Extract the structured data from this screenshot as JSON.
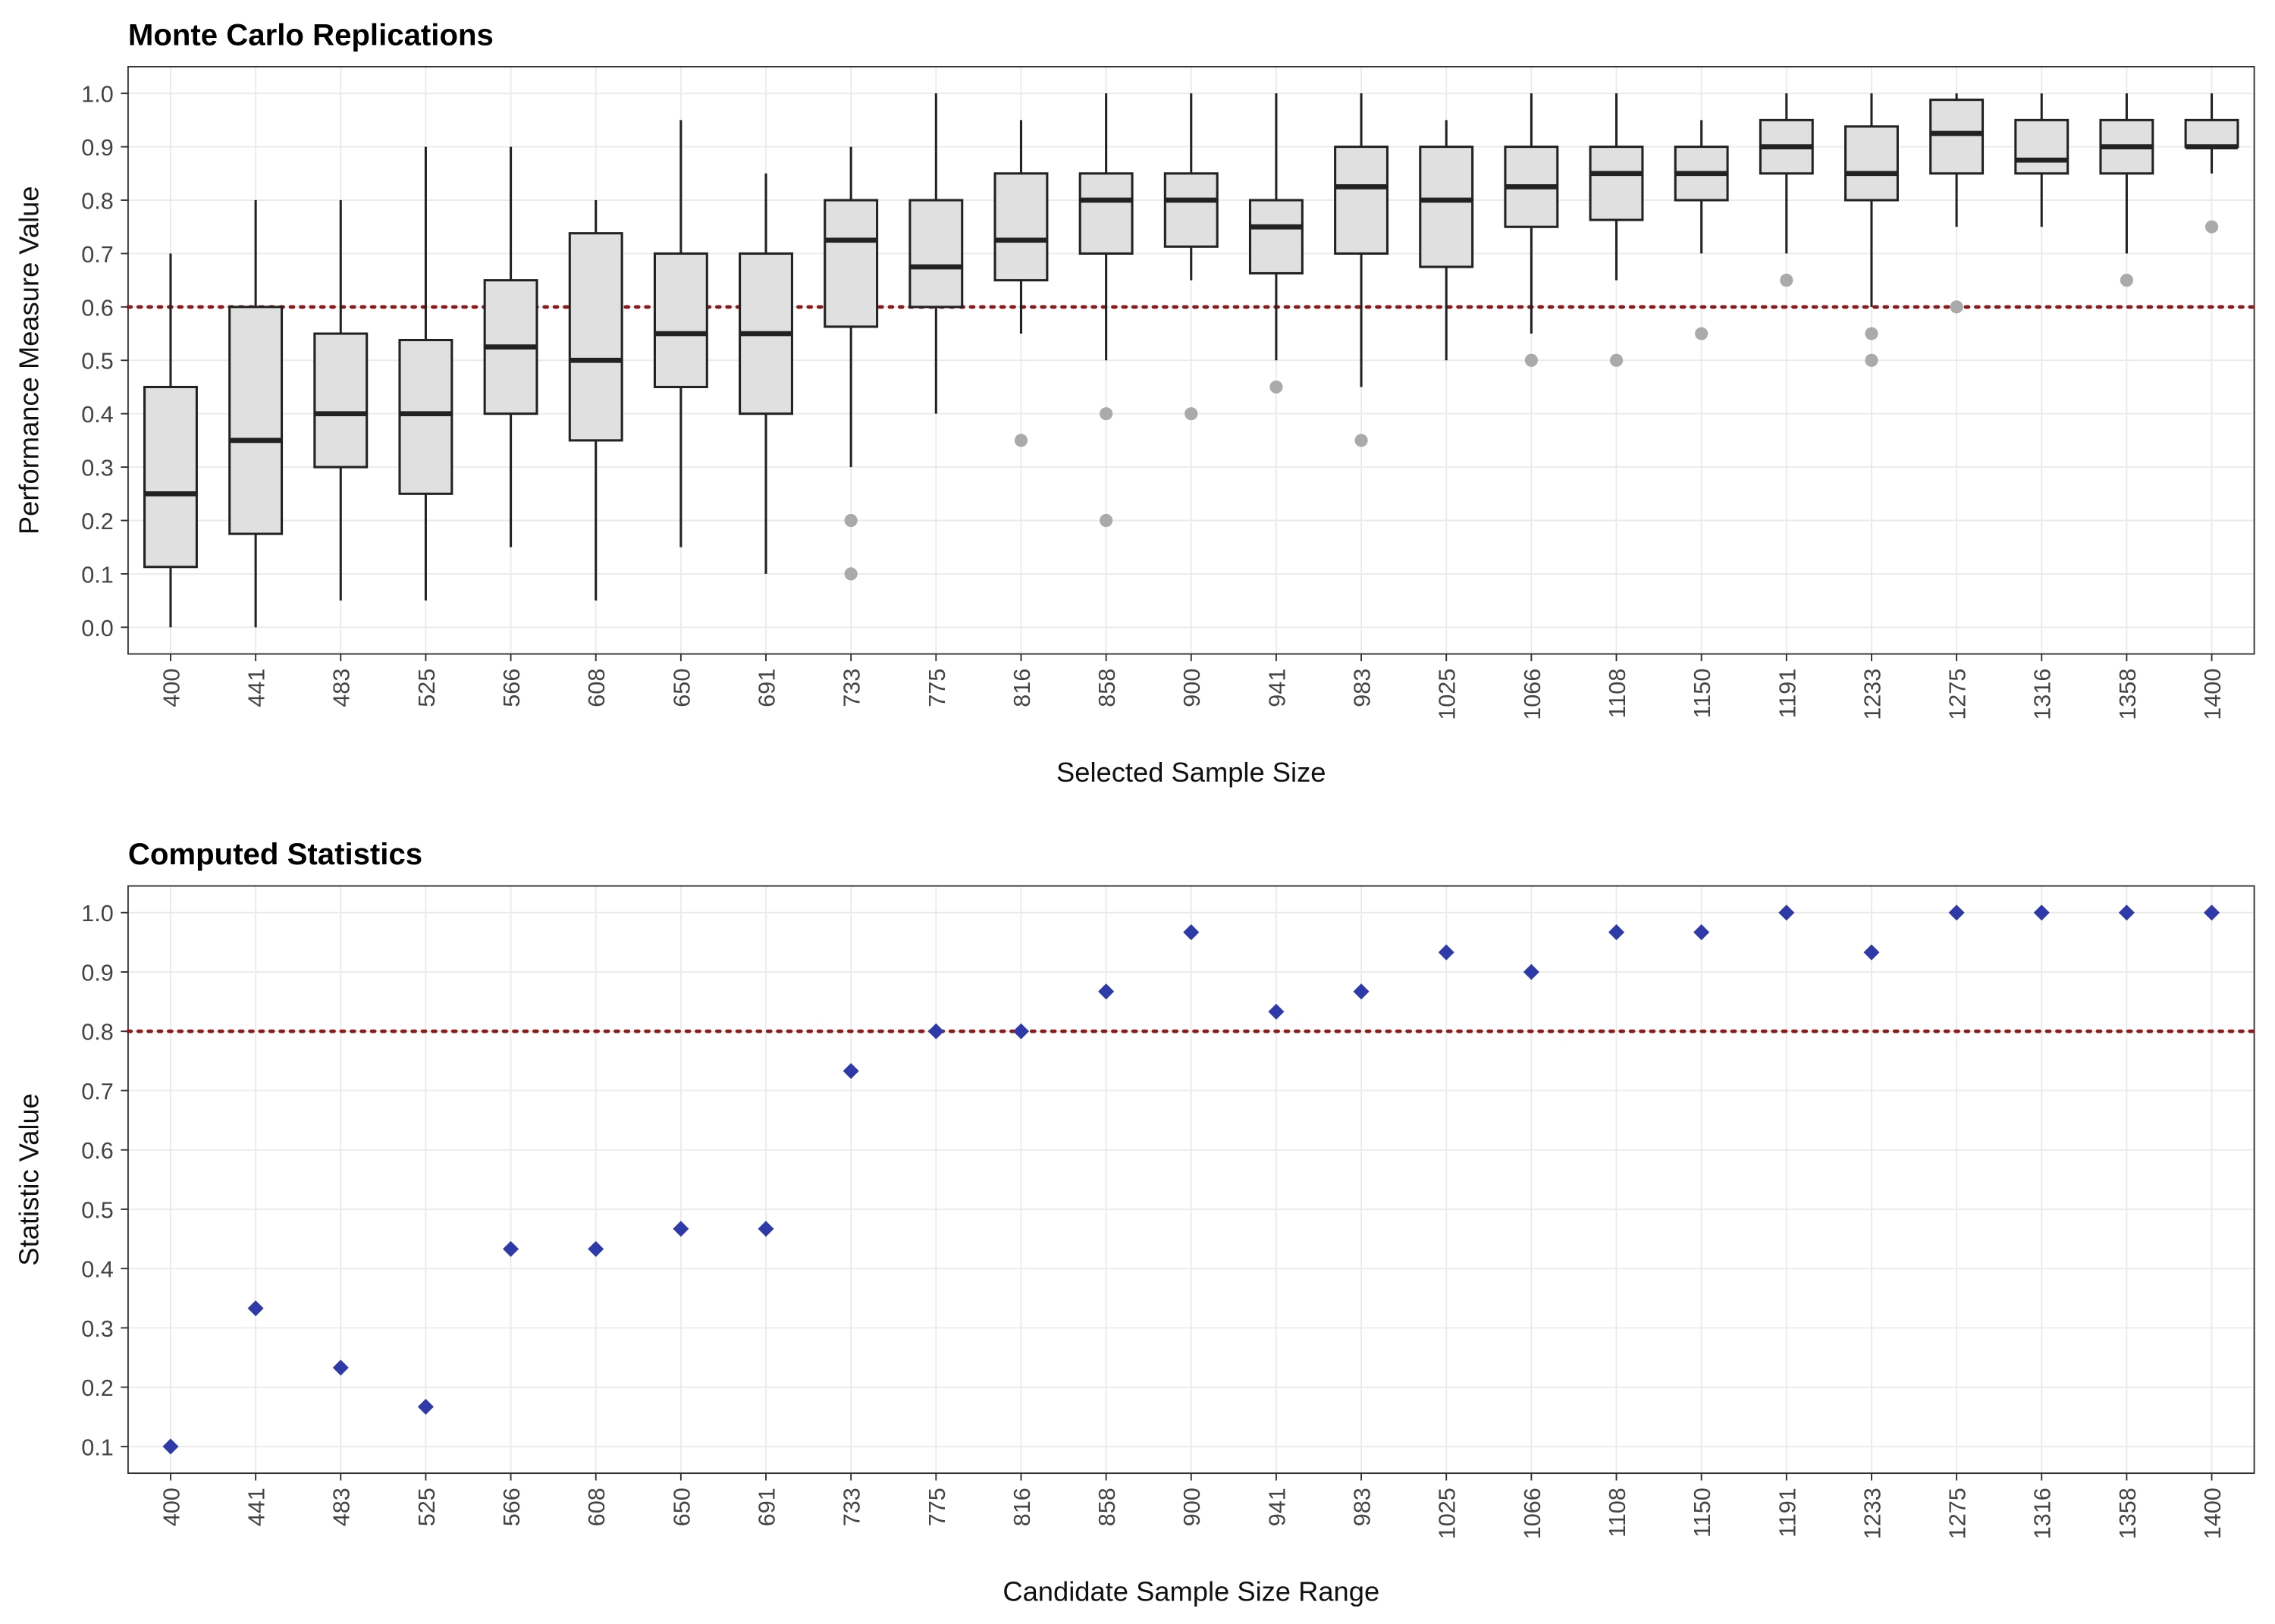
{
  "chart_data": [
    {
      "type": "box",
      "title": "Monte Carlo Replications",
      "x_label": "Selected Sample Size",
      "y_label": "Performance Measure Value",
      "categories": [
        "400",
        "441",
        "483",
        "525",
        "566",
        "608",
        "650",
        "691",
        "733",
        "775",
        "816",
        "858",
        "900",
        "941",
        "983",
        "1025",
        "1066",
        "1108",
        "1150",
        "1191",
        "1233",
        "1275",
        "1316",
        "1358",
        "1400"
      ],
      "boxes": [
        {
          "whisker_low": 0.0,
          "q1": 0.113,
          "median": 0.25,
          "q3": 0.45,
          "whisker_high": 0.7,
          "outliers": []
        },
        {
          "whisker_low": 0.0,
          "q1": 0.175,
          "median": 0.35,
          "q3": 0.6,
          "whisker_high": 0.8,
          "outliers": []
        },
        {
          "whisker_low": 0.05,
          "q1": 0.3,
          "median": 0.4,
          "q3": 0.55,
          "whisker_high": 0.8,
          "outliers": []
        },
        {
          "whisker_low": 0.05,
          "q1": 0.25,
          "median": 0.4,
          "q3": 0.538,
          "whisker_high": 0.9,
          "outliers": []
        },
        {
          "whisker_low": 0.15,
          "q1": 0.4,
          "median": 0.525,
          "q3": 0.65,
          "whisker_high": 0.9,
          "outliers": []
        },
        {
          "whisker_low": 0.05,
          "q1": 0.35,
          "median": 0.5,
          "q3": 0.738,
          "whisker_high": 0.8,
          "outliers": []
        },
        {
          "whisker_low": 0.15,
          "q1": 0.45,
          "median": 0.55,
          "q3": 0.7,
          "whisker_high": 0.95,
          "outliers": []
        },
        {
          "whisker_low": 0.1,
          "q1": 0.4,
          "median": 0.55,
          "q3": 0.7,
          "whisker_high": 0.85,
          "outliers": []
        },
        {
          "whisker_low": 0.3,
          "q1": 0.563,
          "median": 0.725,
          "q3": 0.8,
          "whisker_high": 0.9,
          "outliers": [
            0.2,
            0.1
          ]
        },
        {
          "whisker_low": 0.4,
          "q1": 0.6,
          "median": 0.675,
          "q3": 0.8,
          "whisker_high": 1.0,
          "outliers": []
        },
        {
          "whisker_low": 0.55,
          "q1": 0.65,
          "median": 0.725,
          "q3": 0.85,
          "whisker_high": 0.95,
          "outliers": [
            0.35
          ]
        },
        {
          "whisker_low": 0.5,
          "q1": 0.7,
          "median": 0.8,
          "q3": 0.85,
          "whisker_high": 1.0,
          "outliers": [
            0.4,
            0.2
          ]
        },
        {
          "whisker_low": 0.65,
          "q1": 0.713,
          "median": 0.8,
          "q3": 0.85,
          "whisker_high": 1.0,
          "outliers": [
            0.4
          ]
        },
        {
          "whisker_low": 0.5,
          "q1": 0.663,
          "median": 0.75,
          "q3": 0.8,
          "whisker_high": 1.0,
          "outliers": [
            0.45
          ]
        },
        {
          "whisker_low": 0.45,
          "q1": 0.7,
          "median": 0.825,
          "q3": 0.9,
          "whisker_high": 1.0,
          "outliers": [
            0.35
          ]
        },
        {
          "whisker_low": 0.5,
          "q1": 0.675,
          "median": 0.8,
          "q3": 0.9,
          "whisker_high": 0.95,
          "outliers": []
        },
        {
          "whisker_low": 0.55,
          "q1": 0.75,
          "median": 0.825,
          "q3": 0.9,
          "whisker_high": 1.0,
          "outliers": [
            0.5
          ]
        },
        {
          "whisker_low": 0.65,
          "q1": 0.763,
          "median": 0.85,
          "q3": 0.9,
          "whisker_high": 1.0,
          "outliers": [
            0.5
          ]
        },
        {
          "whisker_low": 0.7,
          "q1": 0.8,
          "median": 0.85,
          "q3": 0.9,
          "whisker_high": 0.95,
          "outliers": [
            0.55
          ]
        },
        {
          "whisker_low": 0.7,
          "q1": 0.85,
          "median": 0.9,
          "q3": 0.95,
          "whisker_high": 1.0,
          "outliers": [
            0.65
          ]
        },
        {
          "whisker_low": 0.6,
          "q1": 0.8,
          "median": 0.85,
          "q3": 0.938,
          "whisker_high": 1.0,
          "outliers": [
            0.55,
            0.5
          ]
        },
        {
          "whisker_low": 0.75,
          "q1": 0.85,
          "median": 0.925,
          "q3": 0.988,
          "whisker_high": 1.0,
          "outliers": [
            0.6
          ]
        },
        {
          "whisker_low": 0.75,
          "q1": 0.85,
          "median": 0.875,
          "q3": 0.95,
          "whisker_high": 1.0,
          "outliers": []
        },
        {
          "whisker_low": 0.7,
          "q1": 0.85,
          "median": 0.9,
          "q3": 0.95,
          "whisker_high": 1.0,
          "outliers": [
            0.65
          ]
        },
        {
          "whisker_low": 0.85,
          "q1": 0.9,
          "median": 0.9,
          "q3": 0.95,
          "whisker_high": 1.0,
          "outliers": [
            0.75
          ]
        }
      ],
      "color": "#e0e0e0",
      "outlier_color": "#aaaaaa",
      "reference_line": {
        "value": 0.6,
        "color": "#8b1a1a"
      },
      "ylim": [
        -0.05,
        1.05
      ],
      "yticks": [
        {
          "value": 0.0,
          "label": "0.0"
        },
        0.1,
        0.2,
        0.3,
        0.4,
        0.5,
        0.6,
        0.7,
        0.8,
        0.9,
        {
          "value": 1.0,
          "label": "1.0"
        }
      ],
      "grid": true
    },
    {
      "type": "scatter",
      "title": "Computed Statistics",
      "x_label": "Candidate Sample Size Range",
      "y_label": "Statistic Value",
      "categories": [
        "400",
        "441",
        "483",
        "525",
        "566",
        "608",
        "650",
        "691",
        "733",
        "775",
        "816",
        "858",
        "900",
        "941",
        "983",
        "1025",
        "1066",
        "1108",
        "1150",
        "1191",
        "1233",
        "1275",
        "1316",
        "1358",
        "1400"
      ],
      "values": [
        0.1,
        0.333,
        0.233,
        0.167,
        0.433,
        0.433,
        0.467,
        0.467,
        0.733,
        0.8,
        0.8,
        0.867,
        0.967,
        0.833,
        0.867,
        0.933,
        0.9,
        0.967,
        0.967,
        1.0,
        0.933,
        1.0,
        1.0,
        1.0,
        1.0
      ],
      "color": "#2e3aa8",
      "reference_line": {
        "value": 0.8,
        "color": "#8b1a1a"
      },
      "ylim": [
        0.055,
        1.045
      ],
      "yticks": [
        0.1,
        0.2,
        0.3,
        0.4,
        0.5,
        0.6,
        0.7,
        0.8,
        0.9,
        {
          "value": 1.0,
          "label": "1.0"
        }
      ],
      "grid": true
    }
  ]
}
